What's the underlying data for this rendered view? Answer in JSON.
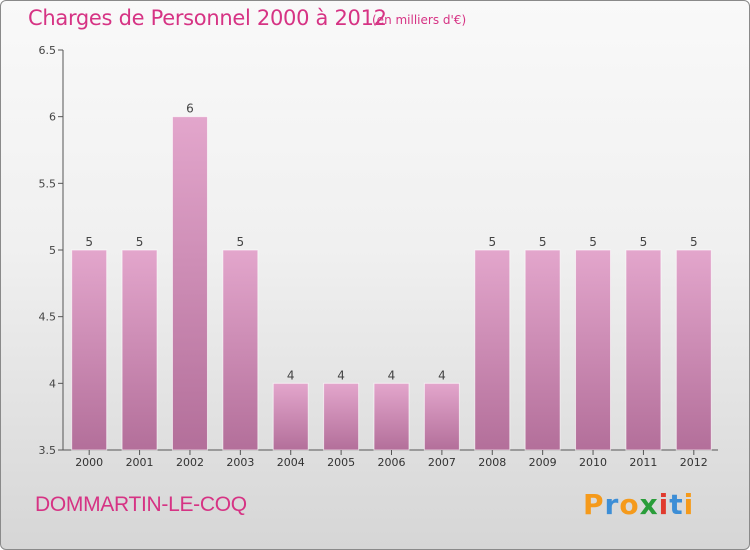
{
  "title": "Charges de Personnel 2000 à 2012",
  "subtitle": "(en milliers d'€)",
  "city": "DOMMARTIN-LE-COQ",
  "logo": {
    "letters": [
      "P",
      "r",
      "o",
      "x",
      "i",
      "t",
      "i"
    ],
    "colors": [
      "#f59a1b",
      "#3d8ed6",
      "#f59a1b",
      "#2a9d3a",
      "#e03a2e",
      "#3d8ed6",
      "#f59a1b"
    ]
  },
  "colors": {
    "accent": "#d63384",
    "bar_light": "#e3a6cc",
    "bar_dark": "#b36f9a",
    "axis": "#555555"
  },
  "chart_data": {
    "type": "bar",
    "title": "Charges de Personnel 2000 à 2012",
    "xlabel": "",
    "ylabel": "",
    "categories": [
      "2000",
      "2001",
      "2002",
      "2003",
      "2004",
      "2005",
      "2006",
      "2007",
      "2008",
      "2009",
      "2010",
      "2011",
      "2012"
    ],
    "values": [
      5,
      5,
      6,
      5,
      4,
      4,
      4,
      4,
      5,
      5,
      5,
      5,
      5
    ],
    "data_labels": [
      "5",
      "5",
      "6",
      "5",
      "4",
      "4",
      "4",
      "4",
      "5",
      "5",
      "5",
      "5",
      "5"
    ],
    "ylim": [
      3.5,
      6.5
    ],
    "yticks": [
      3.5,
      4,
      4.5,
      5,
      5.5,
      6,
      6.5
    ],
    "ytick_labels": [
      "3.5",
      "4",
      "4.5",
      "5",
      "5.5",
      "6",
      "6.5"
    ],
    "grid": false,
    "legend": "none"
  }
}
